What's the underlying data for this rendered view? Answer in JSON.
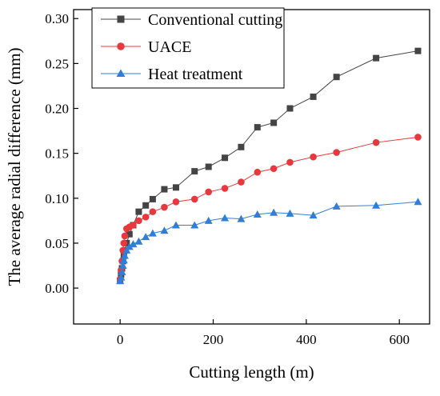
{
  "chart_data": {
    "type": "line",
    "title": "",
    "xlabel": "Cutting length (m)",
    "ylabel": "The average radial difference (mm)",
    "xlim": [
      -100,
      665
    ],
    "ylim": [
      -0.04,
      0.31
    ],
    "xticks": [
      0,
      200,
      400,
      600
    ],
    "yticks": [
      0.0,
      0.05,
      0.1,
      0.15,
      0.2,
      0.25,
      0.3
    ],
    "xtick_labels": [
      "0",
      "200",
      "400",
      "600"
    ],
    "ytick_labels": [
      "0.00",
      "0.05",
      "0.10",
      "0.15",
      "0.20",
      "0.25",
      "0.30"
    ],
    "grid": false,
    "legend_position": "top-left",
    "series": [
      {
        "name": "Conventional cutting",
        "color": "#444444",
        "marker": "square",
        "x": [
          0,
          2,
          4,
          6,
          8,
          10,
          14,
          20,
          28,
          40,
          55,
          70,
          95,
          120,
          160,
          190,
          225,
          260,
          295,
          330,
          365,
          415,
          465,
          550,
          640
        ],
        "y": [
          0.008,
          0.015,
          0.022,
          0.03,
          0.037,
          0.042,
          0.05,
          0.06,
          0.07,
          0.085,
          0.092,
          0.099,
          0.11,
          0.112,
          0.13,
          0.135,
          0.145,
          0.157,
          0.179,
          0.184,
          0.2,
          0.213,
          0.235,
          0.256,
          0.264
        ]
      },
      {
        "name": "UACE",
        "color": "#e8383d",
        "marker": "circle",
        "x": [
          0,
          2,
          4,
          6,
          8,
          10,
          14,
          20,
          28,
          40,
          55,
          70,
          95,
          120,
          160,
          190,
          225,
          260,
          295,
          330,
          365,
          415,
          465,
          550,
          640
        ],
        "y": [
          0.01,
          0.02,
          0.03,
          0.042,
          0.05,
          0.058,
          0.066,
          0.068,
          0.07,
          0.075,
          0.079,
          0.085,
          0.09,
          0.096,
          0.099,
          0.107,
          0.111,
          0.118,
          0.129,
          0.133,
          0.14,
          0.146,
          0.151,
          0.162,
          0.168
        ]
      },
      {
        "name": "Heat treatment",
        "color": "#2f7fd8",
        "marker": "triangle",
        "x": [
          0,
          2,
          4,
          6,
          8,
          10,
          14,
          20,
          28,
          40,
          55,
          70,
          95,
          120,
          160,
          190,
          225,
          260,
          295,
          330,
          365,
          415,
          465,
          550,
          640
        ],
        "y": [
          0.008,
          0.012,
          0.018,
          0.025,
          0.031,
          0.036,
          0.042,
          0.046,
          0.049,
          0.052,
          0.057,
          0.061,
          0.064,
          0.07,
          0.07,
          0.075,
          0.078,
          0.077,
          0.082,
          0.084,
          0.083,
          0.081,
          0.091,
          0.092,
          0.096
        ]
      }
    ]
  }
}
